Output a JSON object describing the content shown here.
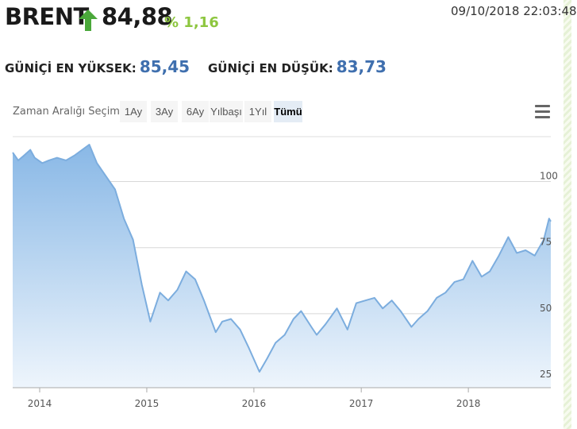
{
  "header": {
    "symbol": "BRENT",
    "price": "84,88",
    "change": "% 1,16",
    "timestamp": "09/10/2018 22:03:48",
    "trend_icon": "arrow-up-icon",
    "trend_color": "#8dc63f"
  },
  "stats": {
    "high_label": "GÜNİÇİ EN YÜKSEK:",
    "high_value": "85,45",
    "low_label": "GÜNİÇİ EN DÜŞÜK:",
    "low_value": "83,73"
  },
  "range_selector": {
    "label": "Zaman Aralığı Seçimi",
    "buttons": [
      "1Ay",
      "3Ay",
      "6Ay",
      "Yılbaşı",
      "1Yıl",
      "Tümü"
    ],
    "active": "Tümü"
  },
  "chart_data": {
    "type": "area",
    "title": "",
    "xlabel": "",
    "ylabel": "",
    "x_ticks": [
      "2014",
      "2015",
      "2016",
      "2017",
      "2018"
    ],
    "y_ticks": [
      25,
      50,
      75,
      100
    ],
    "x_range": [
      "2013-10-01",
      "2018-10-09"
    ],
    "ylim": [
      22,
      117
    ],
    "grid": true,
    "line_color": "#7cadde",
    "fill_top_color": "#89b8e6",
    "fill_bottom_color": "#eef5fc",
    "series": [
      {
        "values": [
          [
            "2013-10-01",
            111
          ],
          [
            "2013-10-20",
            108
          ],
          [
            "2013-11-10",
            110
          ],
          [
            "2013-11-30",
            112
          ],
          [
            "2013-12-15",
            109
          ],
          [
            "2014-01-10",
            107
          ],
          [
            "2014-02-01",
            108
          ],
          [
            "2014-03-01",
            109
          ],
          [
            "2014-04-01",
            108
          ],
          [
            "2014-05-01",
            110
          ],
          [
            "2014-06-19",
            114
          ],
          [
            "2014-07-15",
            107
          ],
          [
            "2014-08-15",
            102
          ],
          [
            "2014-09-15",
            97
          ],
          [
            "2014-10-15",
            86
          ],
          [
            "2014-11-15",
            78
          ],
          [
            "2014-12-15",
            61
          ],
          [
            "2015-01-13",
            47
          ],
          [
            "2015-02-15",
            58
          ],
          [
            "2015-03-15",
            55
          ],
          [
            "2015-04-15",
            59
          ],
          [
            "2015-05-15",
            66
          ],
          [
            "2015-06-15",
            63
          ],
          [
            "2015-07-15",
            55
          ],
          [
            "2015-08-24",
            43
          ],
          [
            "2015-09-15",
            47
          ],
          [
            "2015-10-15",
            48
          ],
          [
            "2015-11-15",
            44
          ],
          [
            "2015-12-15",
            37
          ],
          [
            "2016-01-20",
            28
          ],
          [
            "2016-02-15",
            33
          ],
          [
            "2016-03-15",
            39
          ],
          [
            "2016-04-15",
            42
          ],
          [
            "2016-05-15",
            48
          ],
          [
            "2016-06-10",
            51
          ],
          [
            "2016-07-15",
            45
          ],
          [
            "2016-08-02",
            42
          ],
          [
            "2016-09-01",
            46
          ],
          [
            "2016-10-10",
            52
          ],
          [
            "2016-11-15",
            44
          ],
          [
            "2016-12-15",
            54
          ],
          [
            "2017-01-15",
            55
          ],
          [
            "2017-02-15",
            56
          ],
          [
            "2017-03-15",
            52
          ],
          [
            "2017-04-15",
            55
          ],
          [
            "2017-05-15",
            51
          ],
          [
            "2017-06-21",
            45
          ],
          [
            "2017-07-15",
            48
          ],
          [
            "2017-08-15",
            51
          ],
          [
            "2017-09-15",
            56
          ],
          [
            "2017-10-15",
            58
          ],
          [
            "2017-11-15",
            62
          ],
          [
            "2017-12-15",
            63
          ],
          [
            "2018-01-15",
            70
          ],
          [
            "2018-02-15",
            64
          ],
          [
            "2018-03-15",
            66
          ],
          [
            "2018-04-15",
            72
          ],
          [
            "2018-05-17",
            79
          ],
          [
            "2018-06-15",
            73
          ],
          [
            "2018-07-15",
            74
          ],
          [
            "2018-08-15",
            72
          ],
          [
            "2018-09-15",
            78
          ],
          [
            "2018-10-03",
            86
          ],
          [
            "2018-10-09",
            84.88
          ]
        ]
      }
    ]
  }
}
